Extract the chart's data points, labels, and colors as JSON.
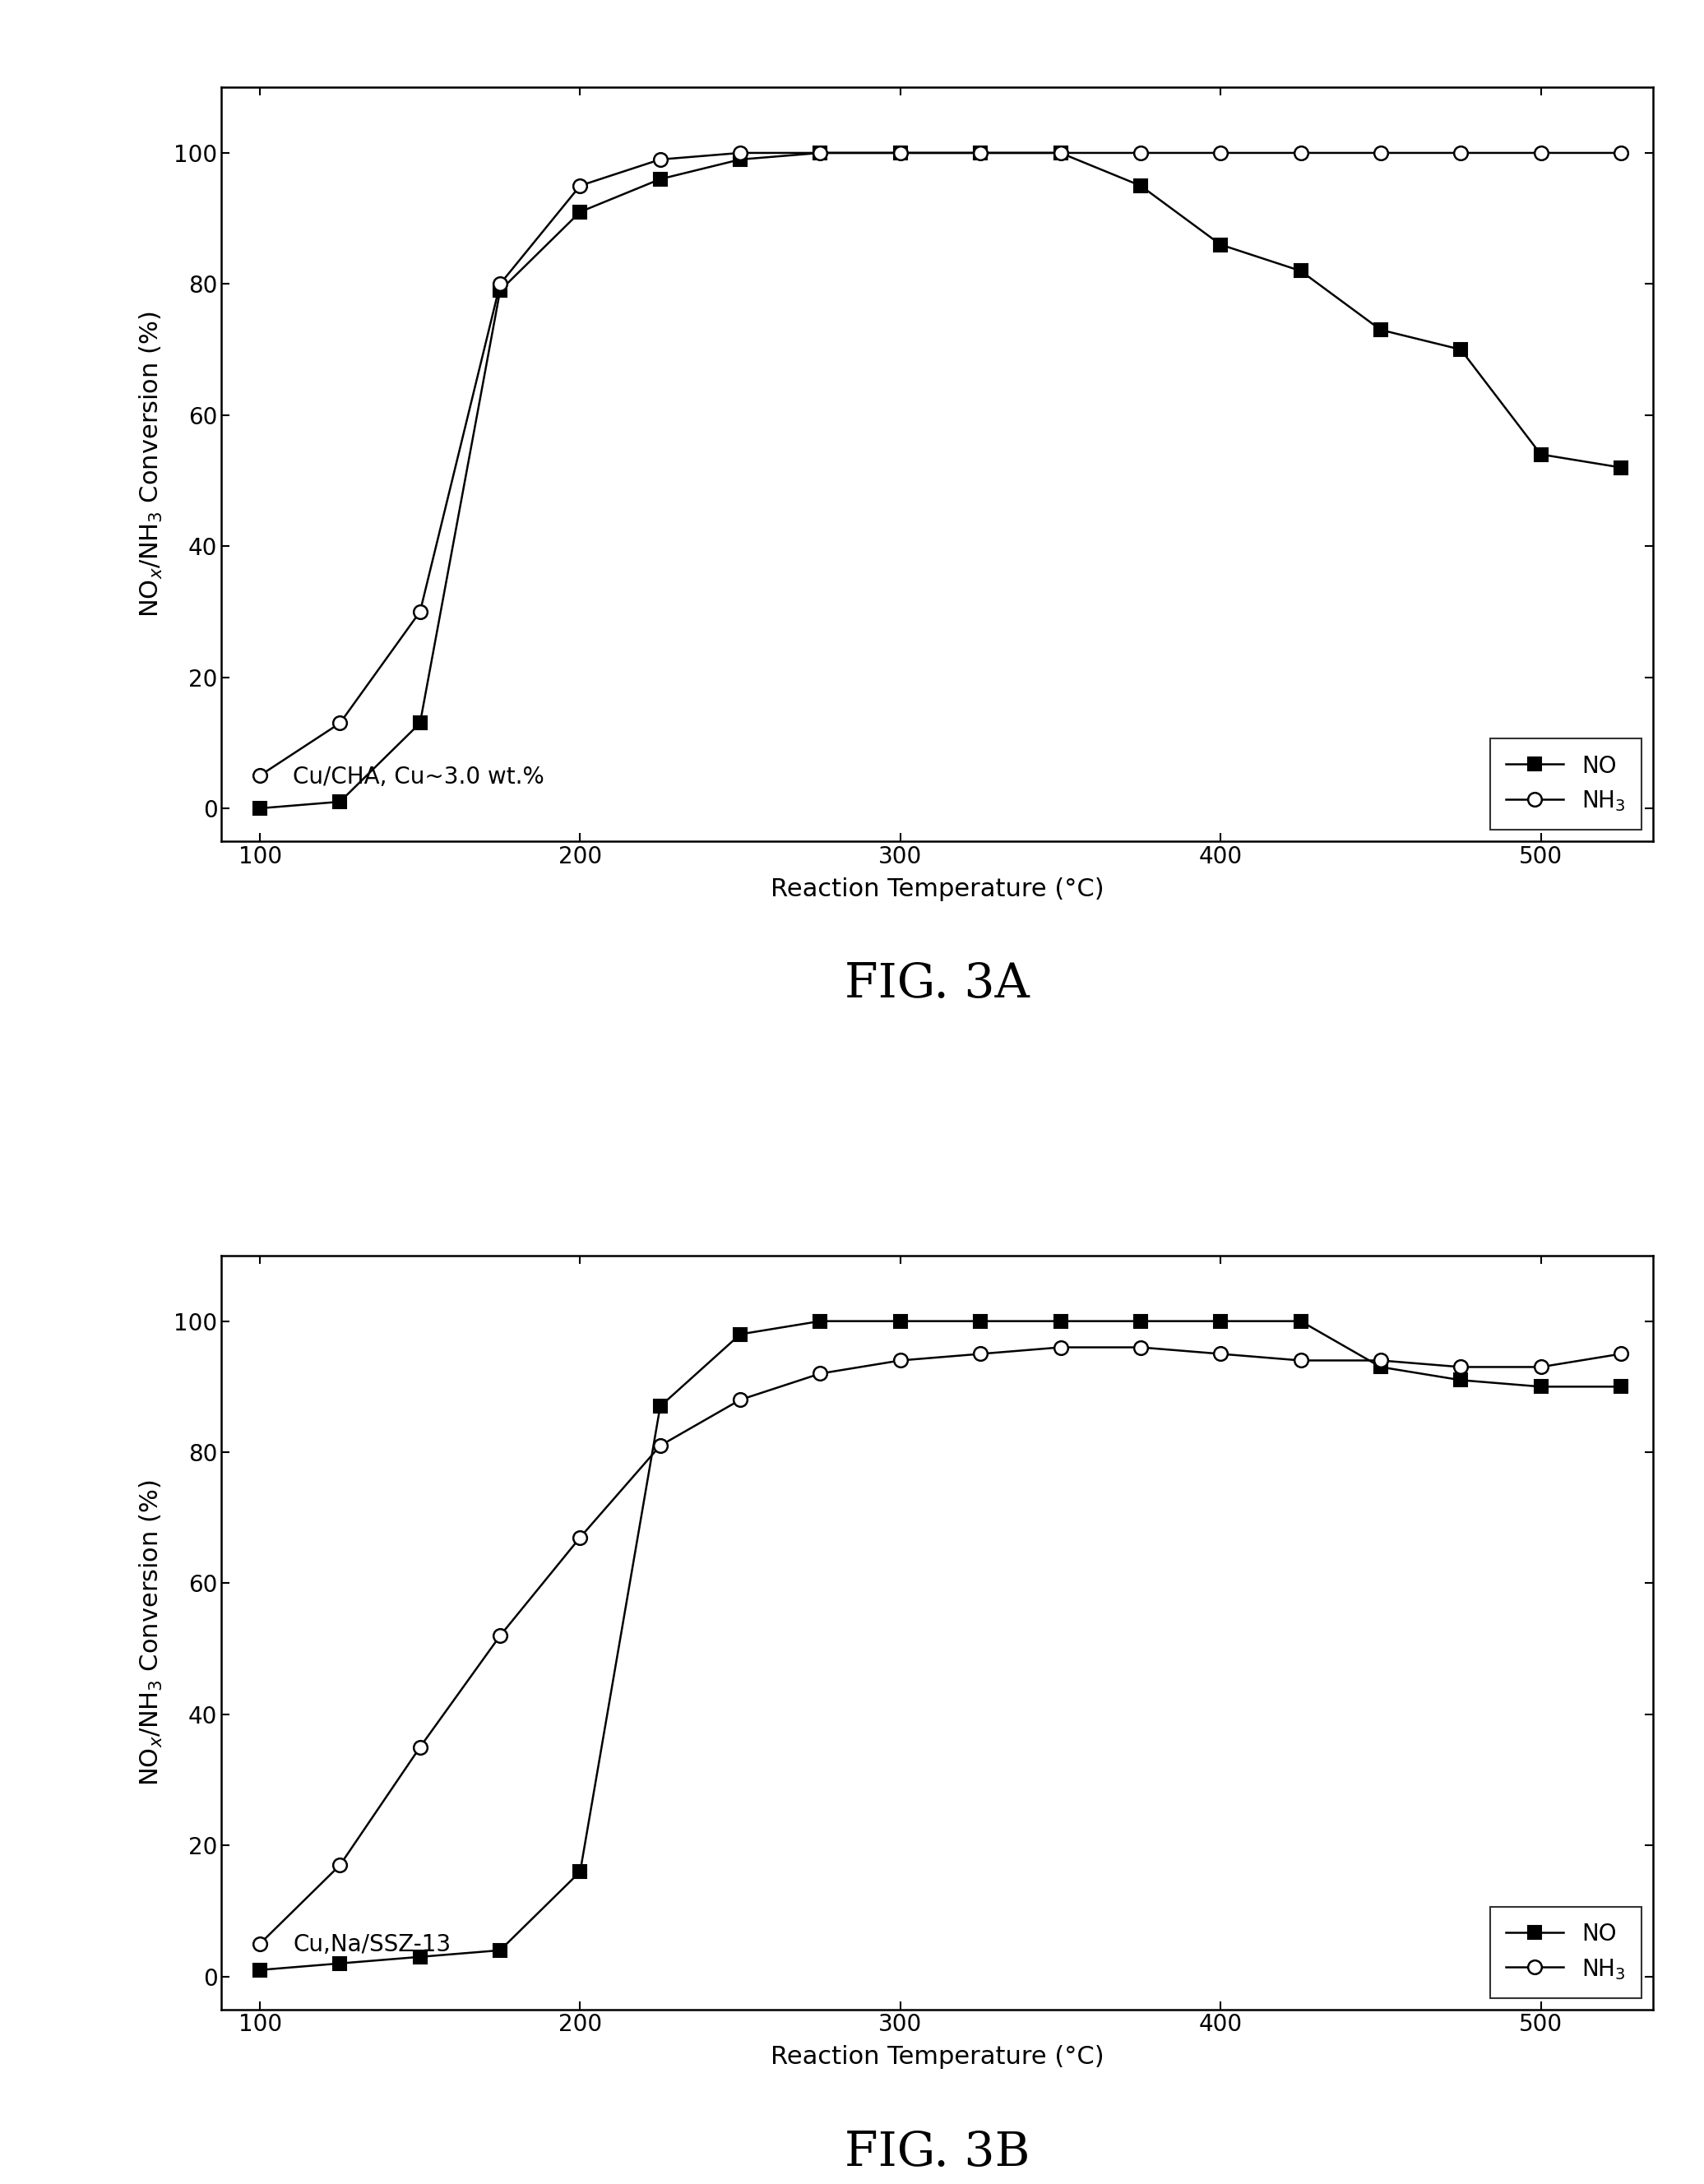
{
  "fig3a": {
    "title": "FIG. 3A",
    "label": "Cu/CHA, Cu~3.0 wt.%",
    "NO_x": [
      100,
      125,
      150,
      175,
      200,
      225,
      250,
      275,
      300,
      325,
      350,
      375,
      400,
      425,
      450,
      475,
      500,
      525
    ],
    "NO_y": [
      0,
      1,
      13,
      79,
      91,
      96,
      99,
      100,
      100,
      100,
      100,
      95,
      86,
      82,
      73,
      70,
      54,
      52
    ],
    "NH3_x": [
      100,
      125,
      150,
      175,
      200,
      225,
      250,
      275,
      300,
      325,
      350,
      375,
      400,
      425,
      450,
      475,
      500,
      525
    ],
    "NH3_y": [
      5,
      13,
      30,
      80,
      95,
      99,
      100,
      100,
      100,
      100,
      100,
      100,
      100,
      100,
      100,
      100,
      100,
      100
    ]
  },
  "fig3b": {
    "title": "FIG. 3B",
    "label": "Cu,Na/SSZ-13",
    "NO_x": [
      100,
      125,
      150,
      175,
      200,
      225,
      250,
      275,
      300,
      325,
      350,
      375,
      400,
      425,
      450,
      475,
      500,
      525
    ],
    "NO_y": [
      1,
      2,
      3,
      4,
      16,
      87,
      98,
      100,
      100,
      100,
      100,
      100,
      100,
      100,
      93,
      91,
      90,
      90
    ],
    "NH3_x": [
      100,
      125,
      150,
      175,
      200,
      225,
      250,
      275,
      300,
      325,
      350,
      375,
      400,
      425,
      450,
      475,
      500,
      525
    ],
    "NH3_y": [
      5,
      17,
      35,
      52,
      67,
      81,
      88,
      92,
      94,
      95,
      96,
      96,
      95,
      94,
      94,
      93,
      93,
      95
    ]
  },
  "xlabel": "Reaction Temperature (°C)",
  "ylabel": "NOx/NH3 Conversion (%)",
  "ylabel_parts": [
    "NO",
    "x",
    "/NH",
    "3",
    " Conversion (%)"
  ],
  "xlim": [
    88,
    535
  ],
  "ylim": [
    -5,
    110
  ],
  "xticks": [
    100,
    200,
    300,
    400,
    500
  ],
  "yticks": [
    0,
    20,
    40,
    60,
    80,
    100
  ],
  "background": "#ffffff",
  "line_color": "#000000",
  "marker_NO": "s",
  "marker_NH3": "o",
  "marker_size": 12,
  "linewidth": 1.8,
  "legend_NO": "NO",
  "legend_NH3": "NH3",
  "title_fontsize": 42,
  "label_fontsize": 22,
  "tick_fontsize": 20,
  "legend_fontsize": 20,
  "annotation_fontsize": 20
}
